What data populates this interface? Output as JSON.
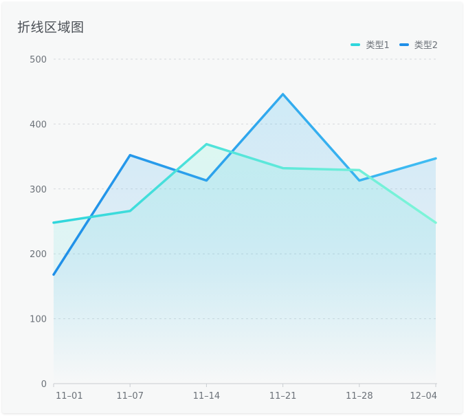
{
  "title": "折线区域图",
  "legend": [
    {
      "label": "类型1",
      "color": "#2fd6dc"
    },
    {
      "label": "类型2",
      "color": "#1f8fe8"
    }
  ],
  "chart_data": {
    "type": "area",
    "title": "折线区域图",
    "xlabel": "",
    "ylabel": "",
    "categories": [
      "11–01",
      "11–07",
      "11–14",
      "11–21",
      "11–28",
      "12–04"
    ],
    "ylim": [
      0,
      500
    ],
    "yticks": [
      0,
      100,
      200,
      300,
      400,
      500
    ],
    "grid": true,
    "legend_position": "top-right",
    "series": [
      {
        "name": "类型1",
        "values": [
          248,
          266,
          369,
          332,
          329,
          248
        ],
        "color": "#2fd6dc",
        "color_end": "#7ff5d8"
      },
      {
        "name": "类型2",
        "values": [
          168,
          352,
          313,
          446,
          313,
          347
        ],
        "color": "#1f8fe8",
        "color_end": "#3fbdf2"
      }
    ]
  }
}
